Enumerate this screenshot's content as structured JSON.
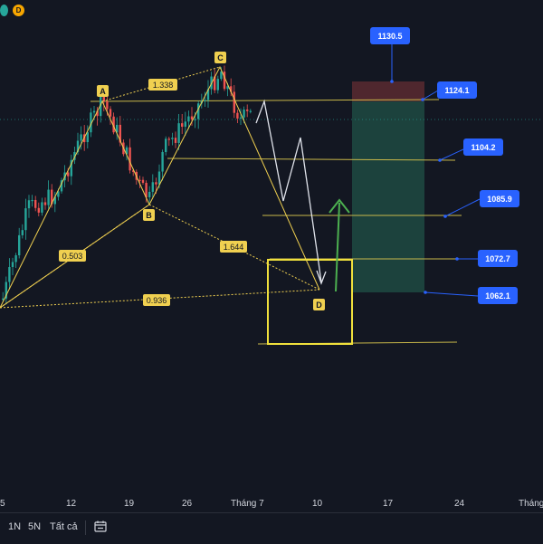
{
  "top_badges": [
    {
      "text": "D",
      "color": "#f7a600"
    }
  ],
  "x_axis": {
    "ticks": [
      {
        "label": "5",
        "pos": "t5"
      },
      {
        "label": "12",
        "pos": "t12"
      },
      {
        "label": "19",
        "pos": "t19"
      },
      {
        "label": "26",
        "pos": "t26"
      },
      {
        "label": "Tháng 7",
        "pos": "t30"
      },
      {
        "label": "10",
        "pos": "t10"
      },
      {
        "label": "17",
        "pos": "t17"
      },
      {
        "label": "24",
        "pos": "t24"
      },
      {
        "label": "Tháng",
        "pos": "t31"
      }
    ]
  },
  "pattern": {
    "points": {
      "A": "A",
      "B": "B",
      "C": "C",
      "D": "D"
    },
    "ratios": {
      "xb": "0.503",
      "ac": "1.338",
      "bd": "1.644",
      "xd": "0.936"
    },
    "color": "#f0d050"
  },
  "price_levels": [
    "1130.5",
    "1124.1",
    "1104.2",
    "1085.9",
    "1072.7",
    "1062.1"
  ],
  "colors": {
    "up": "#26a69a",
    "down": "#ef5350",
    "label_bg": "#2962ff",
    "pattern": "#f0d050",
    "arrow_up": "#4caf50",
    "projection": "#e0e3eb",
    "target_zone": "#1e4a42",
    "stop_zone": "#5a2a30",
    "box": "#f0e03c"
  },
  "bottom_toolbar": {
    "timeframes": [
      "1N",
      "5N",
      "Tất cả"
    ],
    "calendar_icon": "calendar-range-icon"
  }
}
